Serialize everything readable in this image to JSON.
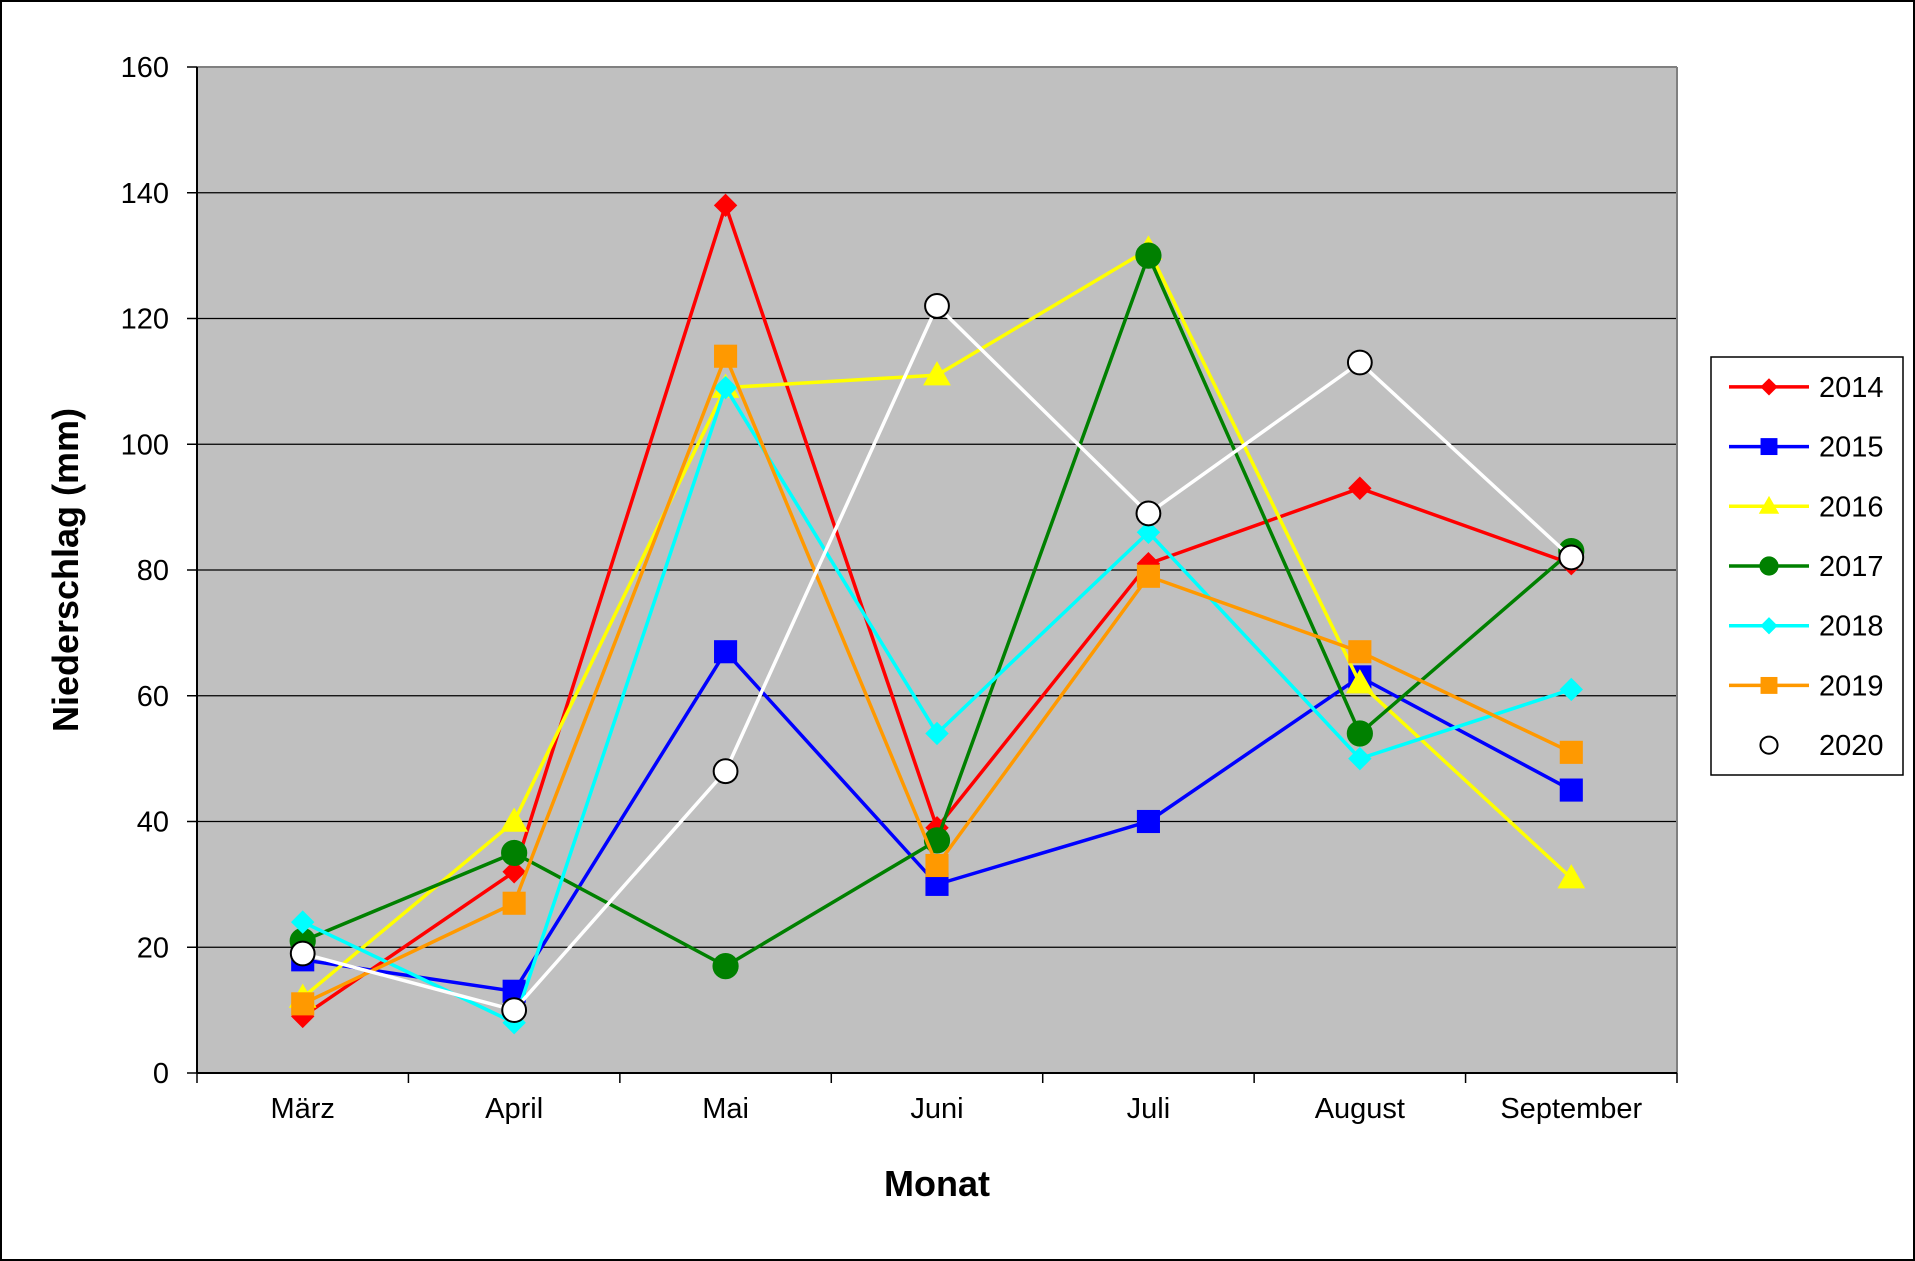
{
  "chart_data": {
    "type": "line",
    "title": "",
    "xlabel": "Monat",
    "ylabel": "Niederschlag (mm)",
    "categories": [
      "März",
      "April",
      "Mai",
      "Juni",
      "Juli",
      "August",
      "September"
    ],
    "ylim": [
      0,
      160
    ],
    "yticks": [
      0,
      20,
      40,
      60,
      80,
      100,
      120,
      140,
      160
    ],
    "grid": true,
    "legend_position": "right",
    "plot_background": "#c0c0c0",
    "series": [
      {
        "name": "2014",
        "color": "#ff0000",
        "marker": "diamond",
        "values": [
          9,
          32,
          138,
          39,
          81,
          93,
          81
        ]
      },
      {
        "name": "2015",
        "color": "#0000ff",
        "marker": "square",
        "values": [
          18,
          13,
          67,
          30,
          40,
          63,
          45
        ]
      },
      {
        "name": "2016",
        "color": "#ffff00",
        "marker": "triangle",
        "values": [
          12,
          40,
          109,
          111,
          131,
          62,
          31
        ]
      },
      {
        "name": "2017",
        "color": "#008000",
        "marker": "circle",
        "values": [
          21,
          35,
          17,
          37,
          130,
          54,
          83
        ]
      },
      {
        "name": "2018",
        "color": "#00ffff",
        "marker": "diamond",
        "values": [
          24,
          8,
          109,
          54,
          86,
          50,
          61
        ]
      },
      {
        "name": "2019",
        "color": "#ff9900",
        "marker": "square",
        "values": [
          11,
          27,
          114,
          33,
          79,
          67,
          51
        ]
      },
      {
        "name": "2020",
        "color": "#ffffff",
        "marker": "open-circle",
        "values": [
          19,
          10,
          48,
          122,
          89,
          113,
          82
        ]
      }
    ]
  }
}
